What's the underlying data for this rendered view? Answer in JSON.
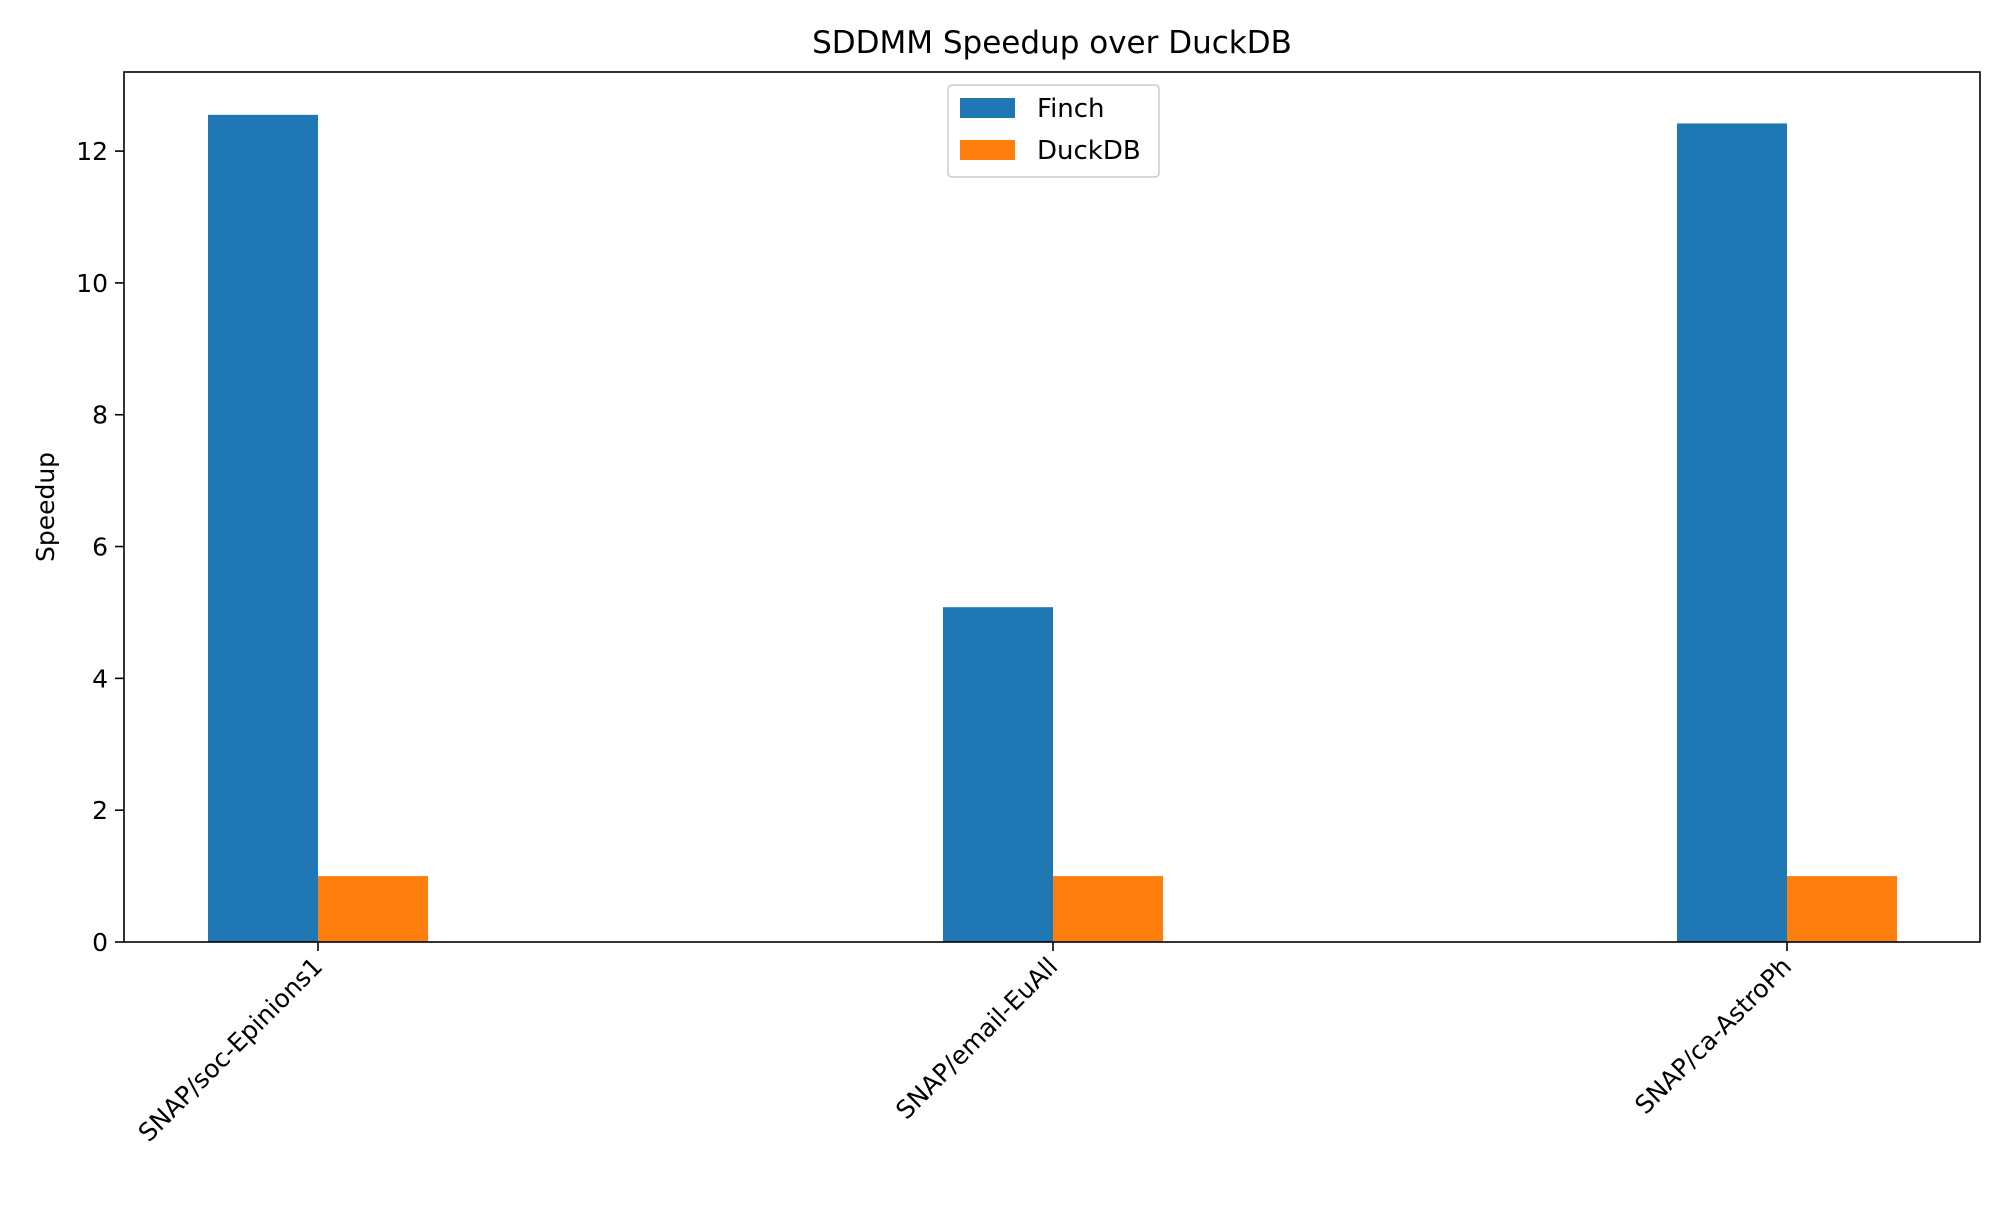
{
  "chart_data": {
    "type": "bar",
    "title": "SDDMM Speedup over DuckDB",
    "xlabel": "",
    "ylabel": "Speedup",
    "categories": [
      "SNAP/soc-Epinions1",
      "SNAP/email-EuAll",
      "SNAP/ca-AstroPh"
    ],
    "series": [
      {
        "name": "Finch",
        "values": [
          12.55,
          5.08,
          12.42
        ],
        "color": "#1f77b4"
      },
      {
        "name": "DuckDB",
        "values": [
          1.0,
          1.0,
          1.0
        ],
        "color": "#ff7f0e"
      }
    ],
    "yticks": [
      0,
      2,
      4,
      6,
      8,
      10,
      12
    ],
    "ylim": [
      0,
      13.2
    ],
    "legend_position": "top-center",
    "grid": false
  }
}
